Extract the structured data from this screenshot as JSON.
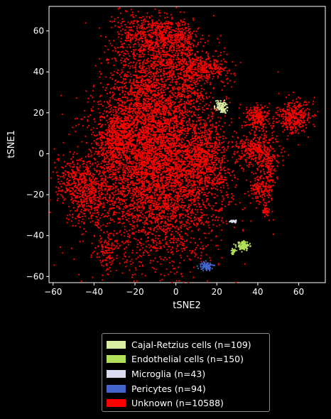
{
  "chart_data": {
    "type": "scatter",
    "xlabel": "tSNE2",
    "ylabel": "tSNE1",
    "xlim": [
      -62,
      73
    ],
    "ylim": [
      -63,
      72
    ],
    "xticks": [
      -60,
      -40,
      -20,
      0,
      20,
      40,
      60
    ],
    "yticks": [
      -60,
      -40,
      -20,
      0,
      20,
      40,
      60
    ],
    "grid": false,
    "legend_position": "bottom-outside",
    "series": [
      {
        "name": "Unknown (n=10588)",
        "color": "#ff0000",
        "count": 10588,
        "clusters": [
          {
            "cx": -8,
            "cy": -8,
            "sx": 16,
            "sy": 22,
            "w": 0.4
          },
          {
            "cx": -15,
            "cy": 25,
            "sx": 9,
            "sy": 18,
            "w": 0.12
          },
          {
            "cx": -16,
            "cy": 58,
            "sx": 7,
            "sy": 6,
            "w": 0.03
          },
          {
            "cx": -4,
            "cy": 58,
            "sx": 5,
            "sy": 4,
            "w": 0.02
          },
          {
            "cx": 2,
            "cy": 44,
            "sx": 7,
            "sy": 7,
            "w": 0.03
          },
          {
            "cx": 14,
            "cy": 42,
            "sx": 7,
            "sy": 3,
            "w": 0.025
          },
          {
            "cx": 5,
            "cy": 56,
            "sx": 4,
            "sy": 4,
            "w": 0.01
          },
          {
            "cx": 7,
            "cy": 30,
            "sx": 4,
            "sy": 5,
            "w": 0.01
          },
          {
            "cx": -30,
            "cy": 5,
            "sx": 5,
            "sy": 7,
            "w": 0.03
          },
          {
            "cx": -42,
            "cy": -20,
            "sx": 6,
            "sy": 8,
            "w": 0.04
          },
          {
            "cx": -50,
            "cy": -13,
            "sx": 4,
            "sy": 5,
            "w": 0.015
          },
          {
            "cx": -28,
            "cy": 15,
            "sx": 4,
            "sy": 4,
            "w": 0.01
          },
          {
            "cx": -34,
            "cy": -48,
            "sx": 2,
            "sy": 4,
            "w": 0.008
          },
          {
            "cx": 14,
            "cy": -2,
            "sx": 5,
            "sy": 9,
            "w": 0.04
          },
          {
            "cx": 22,
            "cy": -13,
            "sx": 1.2,
            "sy": 2,
            "w": 0.003
          },
          {
            "cx": 40,
            "cy": 18,
            "sx": 3,
            "sy": 3,
            "w": 0.02
          },
          {
            "cx": 40,
            "cy": 2,
            "sx": 5,
            "sy": 4,
            "w": 0.03
          },
          {
            "cx": 45,
            "cy": -10,
            "sx": 2,
            "sy": 8,
            "w": 0.015
          },
          {
            "cx": 40,
            "cy": -18,
            "sx": 2,
            "sy": 3,
            "w": 0.008
          },
          {
            "cx": 44,
            "cy": -28,
            "sx": 1,
            "sy": 1.5,
            "w": 0.003
          },
          {
            "cx": 58,
            "cy": 18,
            "sx": 4,
            "sy": 4,
            "w": 0.03
          }
        ]
      },
      {
        "name": "Cajal-Retzius cells (n=109)",
        "color": "#d9f0a3",
        "count": 109,
        "clusters": [
          {
            "cx": 22,
            "cy": 23,
            "sx": 1.3,
            "sy": 1.4,
            "w": 1
          }
        ]
      },
      {
        "name": "Endothelial cells (n=150)",
        "color": "#b2e05a",
        "count": 150,
        "clusters": [
          {
            "cx": 33,
            "cy": -45,
            "sx": 1.6,
            "sy": 1.1,
            "w": 0.8
          },
          {
            "cx": 28,
            "cy": -48,
            "sx": 0.6,
            "sy": 0.6,
            "w": 0.2
          }
        ]
      },
      {
        "name": "Microglia (n=43)",
        "color": "#dcdcf0",
        "count": 43,
        "clusters": [
          {
            "cx": 28,
            "cy": -33,
            "sx": 0.9,
            "sy": 0.25,
            "w": 1
          }
        ]
      },
      {
        "name": "Pericytes (n=94)",
        "color": "#4466cc",
        "count": 94,
        "clusters": [
          {
            "cx": 15,
            "cy": -55,
            "sx": 1.3,
            "sy": 1,
            "w": 1
          }
        ]
      }
    ]
  },
  "legend": {
    "items": [
      {
        "label": "Cajal-Retzius cells (n=109)",
        "color": "#d9f0a3"
      },
      {
        "label": "Endothelial cells (n=150)",
        "color": "#b2e05a"
      },
      {
        "label": "Microglia (n=43)",
        "color": "#dcdcf0"
      },
      {
        "label": "Pericytes (n=94)",
        "color": "#4466cc"
      },
      {
        "label": "Unknown (n=10588)",
        "color": "#ff0000"
      }
    ]
  }
}
